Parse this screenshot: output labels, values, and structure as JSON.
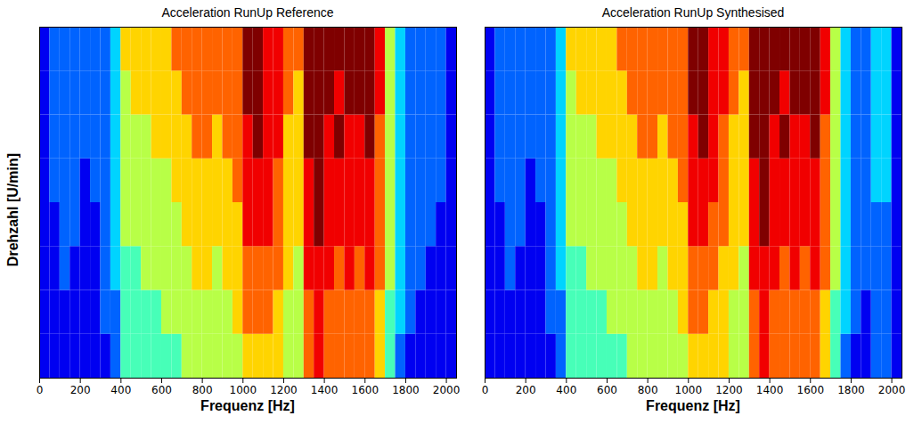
{
  "chart_data": [
    {
      "type": "heatmap",
      "title": "Acceleration RunUp Reference",
      "x_label": "Frequenz [Hz]",
      "y_label": "Drehzahl [U/min]",
      "tick_labels": "x",
      "xlim": [
        0,
        2050
      ],
      "xticks": [
        0,
        200,
        400,
        600,
        800,
        1000,
        1200,
        1400,
        1600,
        1800,
        2000
      ],
      "x_bins": [
        0,
        50,
        100,
        150,
        200,
        250,
        300,
        350,
        400,
        450,
        500,
        550,
        600,
        650,
        700,
        750,
        800,
        850,
        900,
        950,
        1000,
        1050,
        1100,
        1150,
        1200,
        1250,
        1300,
        1350,
        1400,
        1450,
        1500,
        1550,
        1600,
        1650,
        1700,
        1750,
        1800,
        1850,
        1900,
        1950,
        2000,
        2050
      ],
      "zlim": [
        0,
        9
      ],
      "z": [
        [
          1,
          1,
          1,
          1,
          1,
          1,
          1,
          2,
          4,
          4,
          4,
          4,
          4,
          4,
          5,
          5,
          5,
          5,
          5,
          5,
          6,
          6,
          6,
          6,
          5,
          5,
          7,
          8,
          7,
          7,
          7,
          7,
          7,
          6,
          4,
          2,
          1,
          1,
          1,
          1,
          1
        ],
        [
          1,
          1,
          1,
          1,
          1,
          1,
          2,
          2,
          4,
          4,
          4,
          4,
          5,
          5,
          5,
          5,
          5,
          5,
          5,
          6,
          7,
          7,
          7,
          6,
          5,
          5,
          7,
          8,
          7,
          7,
          7,
          7,
          7,
          6,
          4,
          3,
          2,
          1,
          1,
          1,
          1
        ],
        [
          1,
          1,
          2,
          1,
          1,
          1,
          2,
          3,
          4,
          4,
          5,
          5,
          5,
          5,
          5,
          6,
          6,
          5,
          6,
          6,
          7,
          7,
          7,
          7,
          6,
          5,
          8,
          8,
          8,
          7,
          8,
          7,
          8,
          7,
          5,
          3,
          2,
          2,
          1,
          1,
          1
        ],
        [
          1,
          1,
          2,
          2,
          1,
          1,
          2,
          3,
          5,
          5,
          5,
          5,
          5,
          5,
          6,
          6,
          6,
          6,
          6,
          6,
          8,
          8,
          8,
          7,
          6,
          6,
          8,
          9,
          8,
          8,
          8,
          8,
          8,
          7,
          5,
          3,
          2,
          2,
          2,
          1,
          1
        ],
        [
          1,
          2,
          2,
          2,
          1,
          2,
          2,
          3,
          5,
          5,
          5,
          5,
          5,
          6,
          6,
          6,
          6,
          6,
          6,
          7,
          8,
          8,
          8,
          7,
          6,
          6,
          8,
          9,
          8,
          8,
          8,
          8,
          8,
          7,
          5,
          3,
          2,
          2,
          2,
          2,
          1
        ],
        [
          1,
          2,
          2,
          2,
          2,
          2,
          2,
          3,
          5,
          5,
          5,
          6,
          6,
          6,
          6,
          7,
          7,
          6,
          7,
          7,
          8,
          9,
          8,
          8,
          6,
          6,
          9,
          9,
          8,
          9,
          8,
          8,
          9,
          7,
          5,
          3,
          2,
          2,
          2,
          2,
          1
        ],
        [
          1,
          2,
          2,
          2,
          2,
          2,
          2,
          3,
          5,
          6,
          6,
          6,
          6,
          6,
          7,
          7,
          7,
          7,
          7,
          7,
          9,
          9,
          8,
          8,
          7,
          6,
          9,
          9,
          9,
          8,
          9,
          9,
          9,
          8,
          5,
          3,
          2,
          2,
          2,
          2,
          1
        ],
        [
          1,
          2,
          2,
          2,
          2,
          2,
          2,
          3,
          6,
          6,
          6,
          6,
          6,
          7,
          7,
          7,
          7,
          7,
          7,
          7,
          9,
          9,
          8,
          8,
          7,
          7,
          9,
          9,
          9,
          9,
          9,
          9,
          9,
          8,
          5,
          3,
          2,
          2,
          2,
          2,
          1
        ]
      ]
    },
    {
      "type": "heatmap",
      "title": "Acceleration RunUp Synthesised",
      "x_label": "Frequenz [Hz]",
      "tick_labels": "x",
      "xlim": [
        0,
        2050
      ],
      "xticks": [
        0,
        200,
        400,
        600,
        800,
        1000,
        1200,
        1400,
        1600,
        1800,
        2000
      ],
      "x_bins": [
        0,
        50,
        100,
        150,
        200,
        250,
        300,
        350,
        400,
        450,
        500,
        550,
        600,
        650,
        700,
        750,
        800,
        850,
        900,
        950,
        1000,
        1050,
        1100,
        1150,
        1200,
        1250,
        1300,
        1350,
        1400,
        1450,
        1500,
        1550,
        1600,
        1650,
        1700,
        1750,
        1800,
        1850,
        1900,
        1950,
        2000,
        2050
      ],
      "zlim": [
        0,
        9
      ],
      "z": [
        [
          1,
          1,
          1,
          1,
          1,
          1,
          1,
          2,
          4,
          4,
          4,
          4,
          4,
          4,
          5,
          5,
          5,
          5,
          5,
          5,
          6,
          6,
          6,
          6,
          5,
          5,
          7,
          8,
          7,
          7,
          7,
          7,
          7,
          6,
          4,
          2,
          1,
          1,
          2,
          2,
          1
        ],
        [
          1,
          1,
          1,
          1,
          1,
          1,
          2,
          2,
          4,
          4,
          4,
          4,
          5,
          5,
          5,
          5,
          5,
          5,
          5,
          6,
          7,
          7,
          6,
          6,
          5,
          5,
          7,
          8,
          7,
          7,
          7,
          7,
          7,
          6,
          4,
          3,
          2,
          1,
          2,
          2,
          1
        ],
        [
          1,
          1,
          2,
          1,
          1,
          1,
          2,
          3,
          4,
          4,
          5,
          5,
          5,
          5,
          5,
          6,
          6,
          5,
          6,
          6,
          7,
          7,
          7,
          6,
          6,
          5,
          8,
          8,
          8,
          7,
          8,
          7,
          8,
          7,
          5,
          3,
          2,
          2,
          2,
          2,
          1
        ],
        [
          1,
          1,
          2,
          2,
          1,
          1,
          2,
          3,
          5,
          5,
          5,
          5,
          5,
          5,
          6,
          6,
          6,
          6,
          6,
          6,
          8,
          8,
          7,
          7,
          6,
          6,
          8,
          9,
          8,
          8,
          8,
          8,
          8,
          7,
          5,
          3,
          2,
          2,
          2,
          2,
          1
        ],
        [
          1,
          2,
          2,
          2,
          1,
          2,
          2,
          3,
          5,
          5,
          5,
          5,
          5,
          6,
          6,
          6,
          6,
          6,
          6,
          7,
          8,
          8,
          8,
          7,
          6,
          6,
          8,
          9,
          8,
          8,
          8,
          8,
          8,
          7,
          5,
          3,
          2,
          2,
          3,
          3,
          1
        ],
        [
          1,
          2,
          2,
          2,
          2,
          2,
          2,
          3,
          5,
          5,
          5,
          6,
          6,
          6,
          6,
          7,
          7,
          6,
          7,
          7,
          8,
          9,
          8,
          7,
          6,
          6,
          9,
          9,
          8,
          9,
          8,
          8,
          9,
          7,
          5,
          3,
          2,
          2,
          3,
          3,
          1
        ],
        [
          1,
          2,
          2,
          2,
          2,
          2,
          2,
          3,
          5,
          6,
          6,
          6,
          6,
          6,
          7,
          7,
          7,
          7,
          7,
          7,
          9,
          9,
          8,
          8,
          7,
          6,
          9,
          9,
          9,
          8,
          9,
          9,
          9,
          8,
          5,
          3,
          2,
          2,
          3,
          3,
          1
        ],
        [
          1,
          2,
          2,
          2,
          2,
          2,
          2,
          3,
          6,
          6,
          6,
          6,
          6,
          7,
          7,
          7,
          7,
          7,
          7,
          7,
          9,
          9,
          8,
          8,
          7,
          7,
          9,
          9,
          9,
          9,
          9,
          9,
          9,
          8,
          5,
          3,
          2,
          2,
          3,
          3,
          1
        ]
      ]
    }
  ]
}
